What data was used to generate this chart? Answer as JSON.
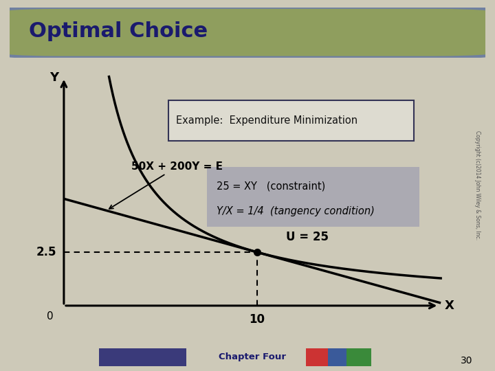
{
  "title": "Optimal Choice",
  "title_bg_color": "#8f9e5e",
  "title_border_color": "#7080a0",
  "title_text_color": "#1a1a6e",
  "bg_color": "#cdc9b8",
  "plot_bg_color": "#cdc9b8",
  "example_box_text": "Example:  Expenditure Minimization",
  "example_box_label_color": "#1a1a6e",
  "example_box_text_color": "#111111",
  "budget_label": "50X + 200Y = E",
  "constraint_line1": "25 = XY   (constraint)",
  "constraint_line2": "Y/X = 1/4  (tangency condition)",
  "u_label": "U = 25",
  "x_label": "X",
  "y_label": "Y",
  "optimal_x": 10,
  "optimal_y": 2.5,
  "x_tick_label": "10",
  "y_tick_label": "2.5",
  "zero_label": "0",
  "page_number": "30",
  "copyright": "Copyright (c)2014 John Wiley & Sons, Inc.",
  "chapter_label": "Chapter Four",
  "bottom_bar_color": "#8a96a8",
  "xlim": [
    -1,
    20
  ],
  "ylim": [
    -0.8,
    11
  ]
}
